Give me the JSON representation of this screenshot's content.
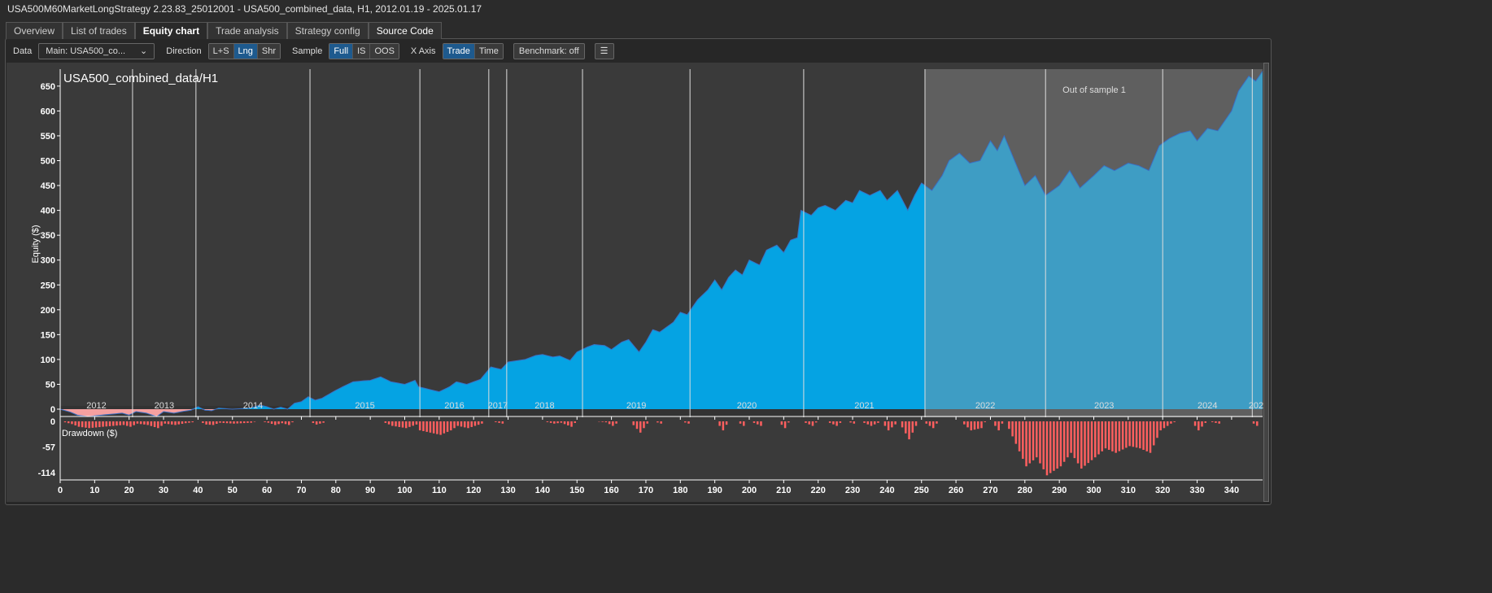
{
  "window_title": "USA500M60MarketLongStrategy 2.23.83_25012001 - USA500_combined_data, H1, 2012.01.19 - 2025.01.17",
  "tabs": [
    {
      "label": "Overview"
    },
    {
      "label": "List of trades"
    },
    {
      "label": "Equity chart"
    },
    {
      "label": "Trade analysis"
    },
    {
      "label": "Strategy config"
    },
    {
      "label": "Source Code"
    }
  ],
  "toolbar": {
    "data_label": "Data",
    "data_value": "Main: USA500_co...",
    "direction_label": "Direction",
    "direction_options": [
      "L+S",
      "Lng",
      "Shr"
    ],
    "sample_label": "Sample",
    "sample_options": [
      "Full",
      "IS",
      "OOS"
    ],
    "xaxis_label": "X Axis",
    "xaxis_options": [
      "Trade",
      "Time"
    ],
    "benchmark": "Benchmark: off",
    "menu_icon": "hamburger-icon"
  },
  "colors": {
    "equity": "#05a3e3",
    "equity_oos": "#3e9dc4",
    "negative": "#f5a0a0",
    "drawdown": "#ff5f5f",
    "oos_bg": "#5f5f5f",
    "bg": "#3a3a3a"
  },
  "chart_data": {
    "type": "area",
    "title": "USA500_combined_data/H1",
    "ylabel": "Equity ($)",
    "drawdown_label": "Drawdown ($)",
    "oos_label": "Out of sample 1",
    "oos_start_trade": 251,
    "xlim": [
      0,
      349
    ],
    "ylim": [
      -25,
      660
    ],
    "x_ticks": [
      0,
      10,
      20,
      30,
      40,
      50,
      60,
      70,
      80,
      90,
      100,
      110,
      120,
      130,
      140,
      150,
      160,
      170,
      180,
      190,
      200,
      210,
      220,
      230,
      240,
      250,
      260,
      270,
      280,
      290,
      300,
      310,
      320,
      330,
      340
    ],
    "y_ticks": [
      0,
      50,
      100,
      150,
      200,
      250,
      300,
      350,
      400,
      450,
      500,
      550,
      600,
      650
    ],
    "drawdown_ticks": [
      0,
      -57,
      -114
    ],
    "years": [
      {
        "label": "2012",
        "start": 0
      },
      {
        "label": "2013",
        "start": 21
      },
      {
        "label": "2014",
        "start": 39.4
      },
      {
        "label": "2015",
        "start": 72.5
      },
      {
        "label": "2016",
        "start": 104.4
      },
      {
        "label": "2017",
        "start": 124.4
      },
      {
        "label": "2018",
        "start": 129.6
      },
      {
        "label": "2019",
        "start": 151.6
      },
      {
        "label": "2020",
        "start": 182.8
      },
      {
        "label": "2021",
        "start": 215.8
      },
      {
        "label": "2022",
        "start": 251
      },
      {
        "label": "2023",
        "start": 286
      },
      {
        "label": "2024",
        "start": 320
      },
      {
        "label": "202",
        "start": 346
      }
    ],
    "equity": [
      [
        0,
        0
      ],
      [
        3,
        -6
      ],
      [
        5,
        -12
      ],
      [
        8,
        -15
      ],
      [
        12,
        -12
      ],
      [
        15,
        -10
      ],
      [
        18,
        -8
      ],
      [
        20,
        -12
      ],
      [
        22,
        -5
      ],
      [
        25,
        -8
      ],
      [
        28,
        -15
      ],
      [
        30,
        -5
      ],
      [
        33,
        -8
      ],
      [
        36,
        -4
      ],
      [
        38,
        -2
      ],
      [
        40,
        5
      ],
      [
        42,
        -2
      ],
      [
        44,
        -3
      ],
      [
        46,
        2
      ],
      [
        50,
        0
      ],
      [
        55,
        2
      ],
      [
        58,
        8
      ],
      [
        60,
        5
      ],
      [
        62,
        0
      ],
      [
        64,
        4
      ],
      [
        66,
        0
      ],
      [
        68,
        12
      ],
      [
        70,
        15
      ],
      [
        72,
        25
      ],
      [
        74,
        18
      ],
      [
        76,
        22
      ],
      [
        78,
        30
      ],
      [
        80,
        38
      ],
      [
        82,
        45
      ],
      [
        85,
        55
      ],
      [
        88,
        57
      ],
      [
        90,
        58
      ],
      [
        93,
        65
      ],
      [
        96,
        55
      ],
      [
        100,
        50
      ],
      [
        103,
        58
      ],
      [
        104,
        45
      ],
      [
        107,
        40
      ],
      [
        110,
        35
      ],
      [
        113,
        45
      ],
      [
        115,
        55
      ],
      [
        118,
        50
      ],
      [
        120,
        55
      ],
      [
        122,
        60
      ],
      [
        125,
        85
      ],
      [
        128,
        80
      ],
      [
        130,
        95
      ],
      [
        133,
        98
      ],
      [
        135,
        100
      ],
      [
        138,
        108
      ],
      [
        140,
        110
      ],
      [
        143,
        105
      ],
      [
        145,
        107
      ],
      [
        148,
        98
      ],
      [
        150,
        115
      ],
      [
        153,
        125
      ],
      [
        155,
        130
      ],
      [
        158,
        128
      ],
      [
        160,
        120
      ],
      [
        163,
        135
      ],
      [
        165,
        140
      ],
      [
        168,
        115
      ],
      [
        170,
        135
      ],
      [
        172,
        160
      ],
      [
        174,
        155
      ],
      [
        176,
        165
      ],
      [
        178,
        175
      ],
      [
        180,
        195
      ],
      [
        182,
        190
      ],
      [
        185,
        220
      ],
      [
        188,
        240
      ],
      [
        190,
        260
      ],
      [
        192,
        240
      ],
      [
        194,
        265
      ],
      [
        196,
        280
      ],
      [
        198,
        270
      ],
      [
        200,
        300
      ],
      [
        203,
        290
      ],
      [
        205,
        320
      ],
      [
        208,
        330
      ],
      [
        210,
        315
      ],
      [
        212,
        340
      ],
      [
        214,
        345
      ],
      [
        215,
        400
      ],
      [
        218,
        390
      ],
      [
        220,
        405
      ],
      [
        222,
        410
      ],
      [
        225,
        400
      ],
      [
        228,
        420
      ],
      [
        230,
        415
      ],
      [
        232,
        440
      ],
      [
        235,
        430
      ],
      [
        238,
        440
      ],
      [
        240,
        420
      ],
      [
        243,
        440
      ],
      [
        246,
        400
      ],
      [
        248,
        430
      ],
      [
        250,
        455
      ],
      [
        253,
        440
      ],
      [
        256,
        470
      ],
      [
        258,
        500
      ],
      [
        261,
        515
      ],
      [
        264,
        495
      ],
      [
        267,
        500
      ],
      [
        270,
        540
      ],
      [
        272,
        520
      ],
      [
        274,
        550
      ],
      [
        277,
        500
      ],
      [
        280,
        450
      ],
      [
        283,
        470
      ],
      [
        286,
        430
      ],
      [
        288,
        440
      ],
      [
        290,
        450
      ],
      [
        293,
        480
      ],
      [
        296,
        445
      ],
      [
        300,
        470
      ],
      [
        303,
        490
      ],
      [
        306,
        480
      ],
      [
        310,
        495
      ],
      [
        313,
        490
      ],
      [
        316,
        480
      ],
      [
        319,
        530
      ],
      [
        322,
        545
      ],
      [
        325,
        555
      ],
      [
        328,
        560
      ],
      [
        330,
        540
      ],
      [
        333,
        565
      ],
      [
        336,
        560
      ],
      [
        338,
        580
      ],
      [
        340,
        600
      ],
      [
        342,
        640
      ],
      [
        345,
        670
      ],
      [
        347,
        660
      ],
      [
        349,
        680
      ]
    ]
  }
}
